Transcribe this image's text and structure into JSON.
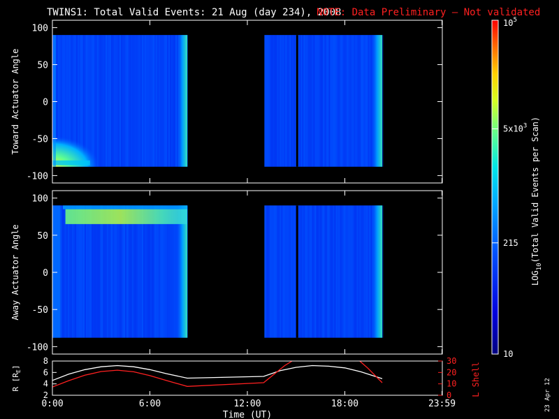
{
  "header": {
    "title": "TWINS1: Total Valid Events: 21 Aug (day 234), 2008",
    "note": "NOTE: Data Preliminary — Not validated"
  },
  "stamp": "23 Apr 12",
  "colors": {
    "background": "#000000",
    "note": "#ff2020",
    "r_line": "#ffffff",
    "lshell_line": "#ff2020"
  },
  "chart_data": [
    {
      "type": "heatmap",
      "name": "toward-panel",
      "ylabel": "Toward Actuator Angle",
      "x_range_hours": [
        0,
        24
      ],
      "ylim": [
        -110,
        110
      ],
      "y_ticks": [
        100,
        50,
        0,
        -50,
        -100
      ],
      "data_extent_deg": [
        -88,
        90
      ],
      "coverage_hours": [
        [
          0.0,
          8.3
        ],
        [
          13.05,
          20.3
        ]
      ],
      "gaps_hours": [
        [
          15.0,
          15.1
        ]
      ],
      "features": [
        {
          "kind": "hot_corner",
          "x_hours": [
            0.0,
            1.8
          ],
          "y_deg": [
            -88,
            -75
          ],
          "level": 0.62
        },
        {
          "kind": "edge_brightening",
          "x_hours": [
            7.9,
            8.3
          ],
          "level": 0.4
        },
        {
          "kind": "edge_brightening",
          "x_hours": [
            19.8,
            20.3
          ],
          "level": 0.52
        }
      ]
    },
    {
      "type": "heatmap",
      "name": "away-panel",
      "ylabel": "Away Actuator Angle",
      "x_range_hours": [
        0,
        24
      ],
      "ylim": [
        -110,
        110
      ],
      "y_ticks": [
        100,
        50,
        0,
        -50,
        -100
      ],
      "data_extent_deg": [
        -88,
        90
      ],
      "coverage_hours": [
        [
          0.0,
          8.3
        ],
        [
          13.05,
          20.3
        ]
      ],
      "gaps_hours": [
        [
          15.0,
          15.1
        ]
      ],
      "features": [
        {
          "kind": "bright_band",
          "x_hours": [
            0.8,
            8.3
          ],
          "y_deg": [
            65,
            85
          ],
          "level": 0.48
        },
        {
          "kind": "bright_column",
          "x_hours": [
            0.0,
            0.5
          ],
          "y_deg": [
            -88,
            90
          ],
          "level": 0.36
        },
        {
          "kind": "edge_brightening",
          "x_hours": [
            19.8,
            20.3
          ],
          "level": 0.52
        }
      ]
    },
    {
      "type": "line",
      "name": "orbit-panel",
      "xlabel": "Time (UT)",
      "x_ticks": [
        0,
        6,
        12,
        18,
        23.98
      ],
      "x_tick_labels": [
        "0:00",
        "6:00",
        "12:00",
        "18:00",
        "23:59"
      ],
      "left_axis": {
        "label": "R [RE]",
        "label_base": "R [R",
        "label_sub": "E",
        "label_end": "]",
        "ylim": [
          2,
          8
        ],
        "ticks": [
          2,
          4,
          6,
          8
        ]
      },
      "right_axis": {
        "label": "L Shell",
        "ylim": [
          0,
          30
        ],
        "ticks": [
          0,
          10,
          20,
          30
        ]
      },
      "series": [
        {
          "axis": "left",
          "color": "#ffffff",
          "x": [
            0.0,
            1.0,
            2.0,
            3.0,
            4.0,
            5.0,
            6.0,
            7.0,
            8.3,
            13.0,
            14.0,
            15.0,
            16.0,
            17.0,
            18.0,
            19.0,
            20.3
          ],
          "y": [
            4.6,
            5.7,
            6.5,
            7.0,
            7.2,
            7.0,
            6.5,
            5.8,
            5.0,
            5.3,
            6.3,
            6.9,
            7.2,
            7.1,
            6.8,
            6.1,
            4.9
          ]
        },
        {
          "name": "L Shell",
          "axis": "right",
          "color": "#ff2020",
          "x": [
            0.0,
            1.0,
            2.0,
            3.0,
            4.0,
            5.0,
            6.0,
            7.0,
            8.3,
            13.0,
            14.3,
            15.2,
            18.6,
            19.4,
            20.3
          ],
          "y": [
            7.2,
            12.8,
            17.6,
            20.8,
            22.0,
            20.6,
            17.2,
            13.0,
            7.8,
            11.0,
            26.0,
            34.0,
            34.0,
            24.0,
            11.0
          ]
        }
      ]
    }
  ],
  "colorbar": {
    "label": "LOG10(Total Valid Events per Scan)",
    "label_base": "LOG",
    "label_sub": "10",
    "label_rest": "(Total Valid Events per Scan)",
    "ticks": [
      {
        "value": 10,
        "text": "10"
      },
      {
        "value": 215,
        "text": "215"
      },
      {
        "value": 5000,
        "text": "5x10",
        "exp": "3"
      },
      {
        "value": 100000,
        "text": "10",
        "exp": "5"
      }
    ],
    "range": [
      10,
      100000
    ],
    "scale": "log"
  }
}
